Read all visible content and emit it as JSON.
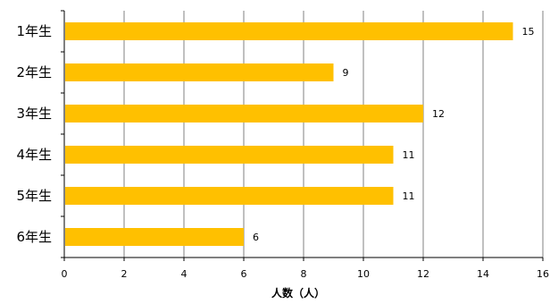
{
  "chart_data": {
    "type": "bar",
    "orientation": "horizontal",
    "title": "",
    "categories": [
      "1年生",
      "2年生",
      "3年生",
      "4年生",
      "5年生",
      "6年生"
    ],
    "values": [
      15,
      9,
      12,
      11,
      11,
      6
    ],
    "xlabel": "人数（人）",
    "ylabel": "",
    "xlim": [
      0,
      16
    ],
    "x_ticks": [
      "0",
      "2",
      "4",
      "6",
      "8",
      "10",
      "12",
      "14",
      "16"
    ],
    "grid": true,
    "legend": "none",
    "data_labels": [
      "15",
      "9",
      "12",
      "11",
      "11",
      "6"
    ],
    "colors": {
      "bar": "#FFC000",
      "grid": "#808080",
      "axis": "#000000"
    }
  }
}
